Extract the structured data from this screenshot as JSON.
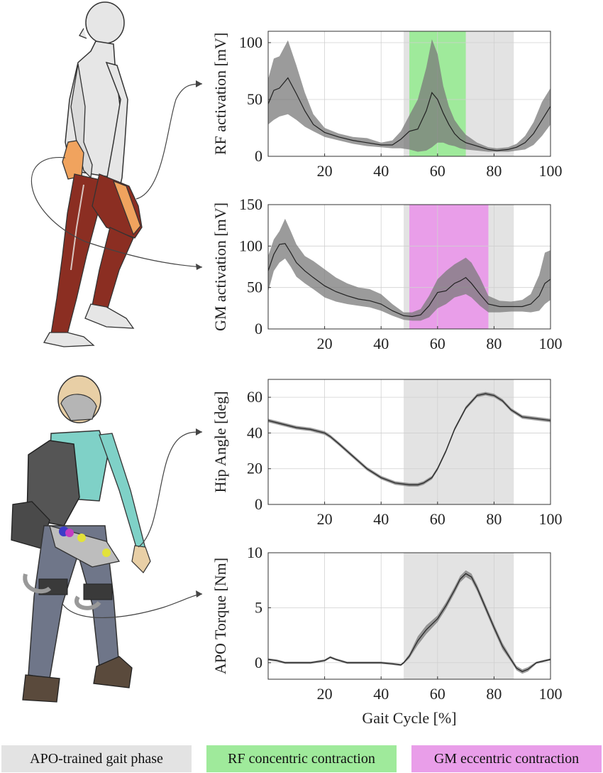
{
  "colors": {
    "apo_phase": "#e3e3e3",
    "rf_concentric": "#9fea9b",
    "gm_eccentric": "#e99ee9",
    "band": "#7a7a7a",
    "line": "#222222",
    "muscle_dark": "#8b2e22",
    "muscle_highlight": "#f0a35e",
    "shirt": "#7fd1c7",
    "pants": "#6f7689",
    "device": "#555555"
  },
  "illustrations": {
    "top": {
      "name": "human figure with leg muscles",
      "icon": "running-person-muscles-icon"
    },
    "bottom": {
      "name": "person wearing active pelvis orthosis",
      "icon": "person-exoskeleton-icon"
    }
  },
  "legend": [
    {
      "label": "APO-trained gait phase",
      "color": "#e3e3e3"
    },
    {
      "label": "RF concentric contraction",
      "color": "#9fea9b"
    },
    {
      "label": "GM eccentric contraction",
      "color": "#e99ee9"
    }
  ],
  "chart_data": [
    {
      "type": "line",
      "ylabel": "RF activation [mV]",
      "xlabel": "",
      "xlim": [
        0,
        100
      ],
      "ylim": [
        0,
        110
      ],
      "xticks": [
        20,
        40,
        60,
        80,
        100
      ],
      "yticks": [
        0,
        50,
        100
      ],
      "grid": true,
      "shaded_regions": [
        {
          "from": 48,
          "to": 87,
          "kind": "apo_phase"
        },
        {
          "from": 50,
          "to": 70,
          "kind": "rf_concentric"
        }
      ],
      "series": [
        {
          "x": [
            0,
            2,
            4,
            7,
            10,
            13,
            16,
            20,
            25,
            30,
            35,
            40,
            44,
            47,
            50,
            53,
            56,
            58,
            60,
            62,
            64,
            66,
            68,
            70,
            74,
            78,
            81,
            85,
            88,
            91,
            94,
            97,
            100
          ],
          "mean": [
            46,
            58,
            60,
            69,
            55,
            40,
            28,
            21,
            17,
            14,
            12,
            10,
            10,
            15,
            22,
            24,
            40,
            56,
            50,
            38,
            28,
            20,
            15,
            12,
            9,
            6,
            5,
            6,
            8,
            12,
            20,
            32,
            44
          ],
          "upper": [
            68,
            86,
            88,
            102,
            80,
            56,
            37,
            25,
            20,
            17,
            16,
            12,
            14,
            22,
            36,
            50,
            78,
            103,
            90,
            62,
            44,
            32,
            25,
            19,
            12,
            8,
            7,
            8,
            11,
            18,
            30,
            48,
            60
          ],
          "lower": [
            28,
            32,
            35,
            37,
            32,
            26,
            22,
            17,
            14,
            11,
            9,
            8,
            7,
            7,
            6,
            4,
            5,
            8,
            12,
            12,
            10,
            9,
            7,
            6,
            5,
            4,
            4,
            4,
            5,
            6,
            10,
            18,
            28
          ]
        }
      ]
    },
    {
      "type": "line",
      "ylabel": "GM activation [mV]",
      "xlabel": "",
      "xlim": [
        0,
        100
      ],
      "ylim": [
        0,
        150
      ],
      "xticks": [
        20,
        40,
        60,
        80,
        100
      ],
      "yticks": [
        0,
        50,
        100,
        150
      ],
      "grid": true,
      "shaded_regions": [
        {
          "from": 48,
          "to": 87,
          "kind": "apo_phase"
        },
        {
          "from": 50,
          "to": 78,
          "kind": "gm_eccentric"
        }
      ],
      "series": [
        {
          "x": [
            0,
            2,
            4,
            6,
            8,
            10,
            13,
            16,
            20,
            24,
            28,
            32,
            36,
            40,
            44,
            48,
            51,
            54,
            57,
            60,
            63,
            66,
            68,
            70,
            72,
            75,
            78,
            82,
            86,
            90,
            93,
            96,
            98,
            100
          ],
          "mean": [
            70,
            90,
            102,
            103,
            92,
            80,
            70,
            62,
            52,
            45,
            40,
            36,
            34,
            30,
            22,
            16,
            15,
            17,
            28,
            44,
            46,
            55,
            58,
            62,
            55,
            42,
            30,
            27,
            27,
            27,
            30,
            40,
            55,
            60
          ],
          "upper": [
            88,
            108,
            118,
            133,
            118,
            102,
            88,
            82,
            72,
            62,
            55,
            50,
            48,
            42,
            30,
            20,
            20,
            24,
            40,
            60,
            70,
            78,
            82,
            86,
            80,
            62,
            40,
            34,
            33,
            35,
            42,
            65,
            92,
            95
          ],
          "lower": [
            45,
            70,
            80,
            85,
            75,
            63,
            55,
            48,
            38,
            33,
            30,
            28,
            26,
            22,
            16,
            11,
            10,
            10,
            14,
            25,
            30,
            38,
            40,
            42,
            38,
            28,
            20,
            20,
            21,
            21,
            20,
            22,
            30,
            35
          ]
        }
      ]
    },
    {
      "type": "line",
      "ylabel": "Hip Angle [deg]",
      "xlabel": "",
      "xlim": [
        0,
        100
      ],
      "ylim": [
        0,
        70
      ],
      "xticks": [
        20,
        40,
        60,
        80,
        100
      ],
      "yticks": [
        0,
        20,
        40,
        60
      ],
      "grid": true,
      "shaded_regions": [
        {
          "from": 48,
          "to": 87,
          "kind": "apo_phase"
        }
      ],
      "series": [
        {
          "x": [
            0,
            5,
            10,
            15,
            20,
            22,
            25,
            30,
            35,
            40,
            45,
            50,
            53,
            55,
            58,
            60,
            63,
            66,
            70,
            74,
            77,
            80,
            83,
            86,
            90,
            95,
            100
          ],
          "mean": [
            47,
            45,
            43,
            42,
            40,
            38,
            34,
            27,
            20,
            15,
            12,
            11,
            11,
            12,
            15,
            20,
            30,
            42,
            54,
            61,
            62,
            61,
            58,
            53,
            49,
            48,
            47
          ],
          "upper": [
            48,
            46,
            44,
            43,
            41,
            39,
            35,
            28,
            21,
            16,
            13,
            12,
            12,
            13,
            16,
            21,
            31,
            43,
            55,
            62,
            63,
            62,
            59,
            54,
            50,
            49,
            48
          ],
          "lower": [
            46,
            44,
            42,
            41,
            39,
            37,
            33,
            26,
            19,
            14,
            11,
            10,
            10,
            11,
            14,
            19,
            29,
            41,
            53,
            60,
            61,
            60,
            57,
            52,
            48,
            47,
            46
          ]
        }
      ]
    },
    {
      "type": "line",
      "ylabel": "APO Torque [Nm]",
      "xlabel": "Gait Cycle [%]",
      "xlim": [
        0,
        100
      ],
      "ylim": [
        -1.5,
        10
      ],
      "xticks": [
        20,
        40,
        60,
        80,
        100
      ],
      "yticks": [
        0,
        5,
        10
      ],
      "grid": true,
      "shaded_regions": [
        {
          "from": 48,
          "to": 87,
          "kind": "apo_phase"
        }
      ],
      "series": [
        {
          "x": [
            0,
            3,
            6,
            10,
            15,
            20,
            22,
            24,
            28,
            32,
            36,
            40,
            44,
            47,
            48,
            50,
            53,
            56,
            60,
            63,
            66,
            68,
            70,
            72,
            74,
            77,
            80,
            83,
            86,
            88,
            90,
            92,
            95,
            100
          ],
          "mean": [
            0.3,
            0.2,
            0.0,
            0.0,
            0.0,
            0.2,
            0.5,
            0.3,
            0.0,
            0.0,
            0.0,
            0.0,
            -0.1,
            -0.2,
            0.0,
            0.6,
            2.0,
            3.0,
            4.0,
            5.2,
            6.6,
            7.6,
            8.1,
            7.8,
            6.8,
            5.0,
            3.2,
            1.5,
            0.3,
            -0.5,
            -0.8,
            -0.6,
            0.0,
            0.3
          ],
          "upper": [
            0.4,
            0.3,
            0.1,
            0.1,
            0.1,
            0.3,
            0.6,
            0.4,
            0.1,
            0.1,
            0.1,
            0.1,
            0.0,
            -0.1,
            0.1,
            0.8,
            2.4,
            3.4,
            4.3,
            5.5,
            6.9,
            7.9,
            8.4,
            8.1,
            7.1,
            5.3,
            3.5,
            1.8,
            0.5,
            -0.3,
            -0.6,
            -0.4,
            0.1,
            0.4
          ],
          "lower": [
            0.2,
            0.1,
            -0.1,
            -0.1,
            -0.1,
            0.1,
            0.4,
            0.2,
            -0.1,
            -0.1,
            -0.1,
            -0.1,
            -0.2,
            -0.3,
            -0.1,
            0.4,
            1.6,
            2.6,
            3.7,
            4.9,
            6.3,
            7.3,
            7.8,
            7.5,
            6.5,
            4.7,
            2.9,
            1.2,
            0.1,
            -0.7,
            -1.0,
            -0.8,
            -0.1,
            0.2
          ]
        }
      ]
    }
  ]
}
